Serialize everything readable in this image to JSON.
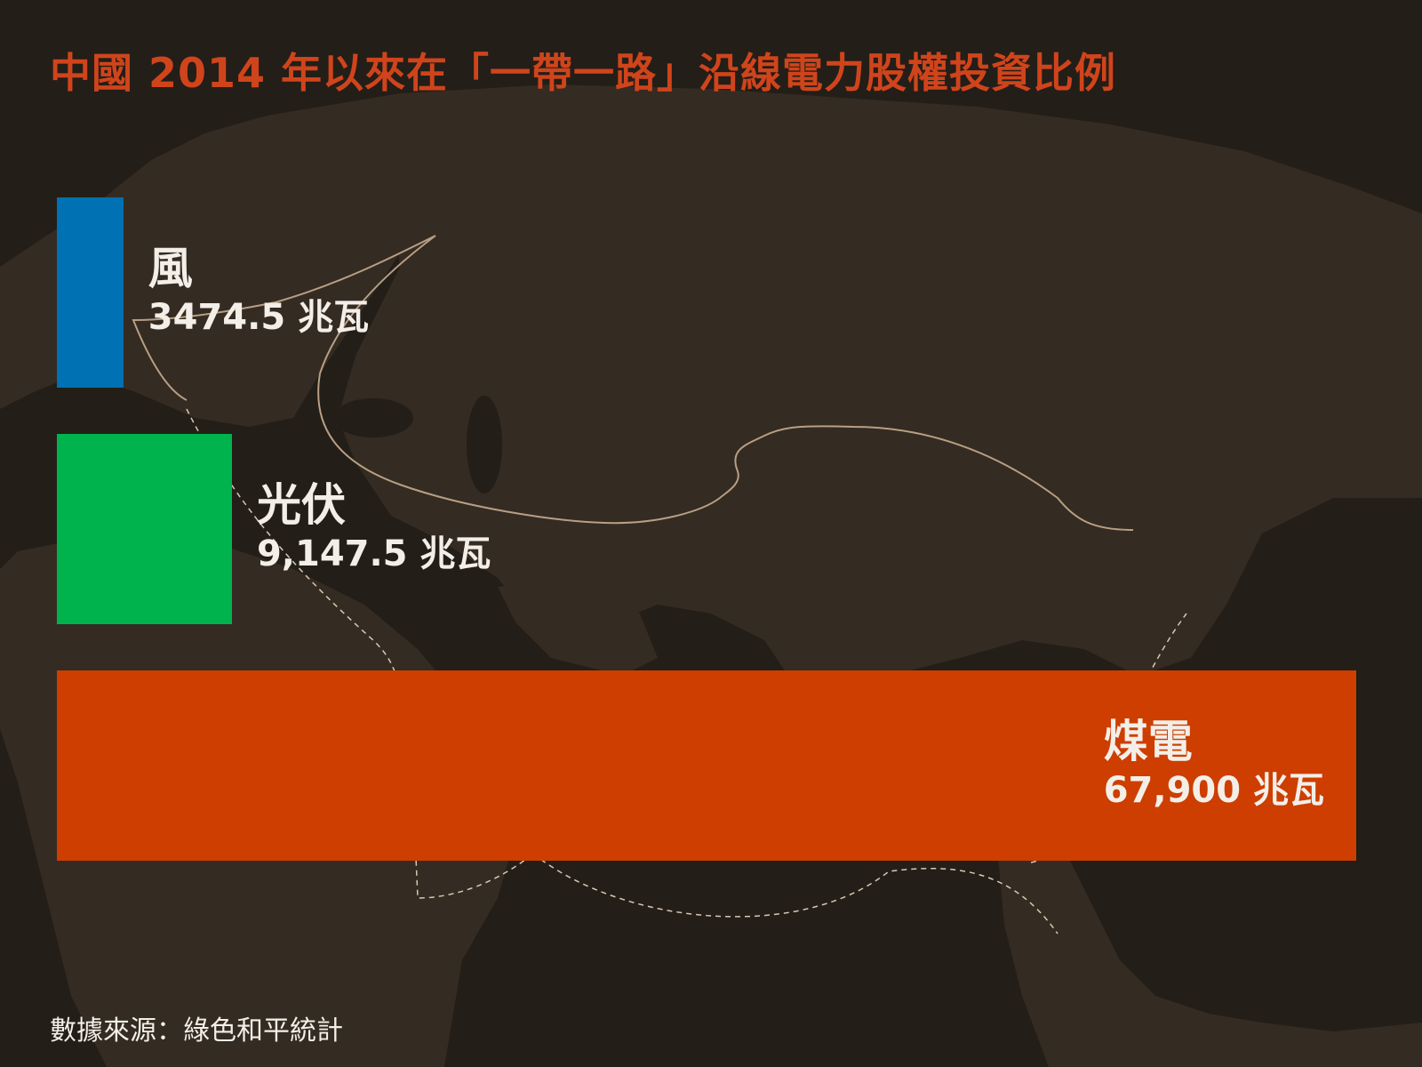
{
  "title": "中國 2014 年以來在「一帶一路」沿線電力股權投資比例",
  "source": "數據來源：綠色和平統計",
  "colors": {
    "background": "#231e18",
    "land": "#342b22",
    "title": "#d0441b",
    "wind": "#0071b2",
    "solar": "#00b34c",
    "coal": "#cd3e00",
    "route": "#b89f84",
    "text": "#f3efe8"
  },
  "chart_data": {
    "type": "bar",
    "orientation": "horizontal",
    "title": "中國 2014 年以來在「一帶一路」沿線電力股權投資比例",
    "unit": "兆瓦",
    "categories": [
      "風",
      "光伏",
      "煤電"
    ],
    "values": [
      3474.5,
      9147.5,
      67900
    ],
    "value_labels": [
      "3474.5 兆瓦",
      "9,147.5 兆瓦",
      "67,900 兆瓦"
    ],
    "colors": [
      "#0071b2",
      "#00b34c",
      "#cd3e00"
    ],
    "grid": false,
    "legend": "none"
  }
}
